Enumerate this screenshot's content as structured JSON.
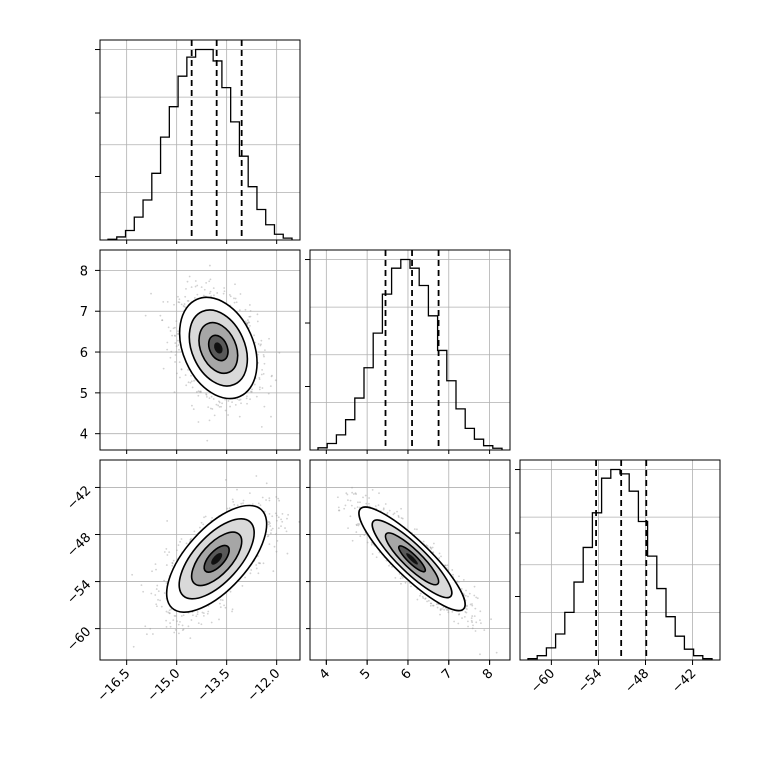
{
  "chart_data": {
    "type": "corner",
    "grid": true,
    "params": [
      {
        "ticks": [
          -16.5,
          -15.0,
          -13.5,
          -12.0
        ],
        "tick_labels": [
          "−16.5",
          "−15.0",
          "−13.5",
          "−12.0"
        ],
        "range": [
          -17.3,
          -11.3
        ],
        "quantiles": [
          -14.55,
          -13.8,
          -13.05
        ],
        "hist_counts": [
          2,
          8,
          25,
          60,
          105,
          175,
          270,
          350,
          430,
          480,
          500,
          500,
          470,
          400,
          310,
          220,
          140,
          80,
          40,
          15,
          5
        ]
      },
      {
        "ticks": [
          4,
          5,
          6,
          7,
          8
        ],
        "tick_labels": [
          "4",
          "5",
          "6",
          "7",
          "8"
        ],
        "range": [
          3.6,
          8.5
        ],
        "quantiles": [
          5.45,
          6.1,
          6.75
        ],
        "hist_counts": [
          5,
          15,
          35,
          70,
          120,
          190,
          270,
          360,
          420,
          440,
          420,
          380,
          310,
          230,
          160,
          95,
          50,
          25,
          10,
          4
        ]
      },
      {
        "ticks": [
          -60,
          -54,
          -48,
          -42
        ],
        "tick_labels": [
          "−60",
          "−54",
          "−48",
          "−42"
        ],
        "range": [
          -64,
          -38.5
        ],
        "quantiles": [
          -54.3,
          -51.1,
          -47.9
        ],
        "hist_counts": [
          3,
          10,
          28,
          60,
          110,
          180,
          260,
          340,
          420,
          440,
          430,
          390,
          320,
          240,
          165,
          100,
          55,
          25,
          10,
          3
        ]
      }
    ],
    "pairs": [
      {
        "x_param": 0,
        "y_param": 1,
        "center": [
          -13.75,
          6.1
        ],
        "sigma": [
          0.58,
          0.62
        ],
        "rho": -0.3
      },
      {
        "x_param": 0,
        "y_param": 2,
        "center": [
          -13.8,
          -51.1
        ],
        "sigma": [
          0.75,
          3.4
        ],
        "rho": 0.65
      },
      {
        "x_param": 1,
        "y_param": 2,
        "center": [
          6.1,
          -51.1
        ],
        "sigma": [
          0.65,
          3.3
        ],
        "rho": -0.88
      }
    ]
  }
}
